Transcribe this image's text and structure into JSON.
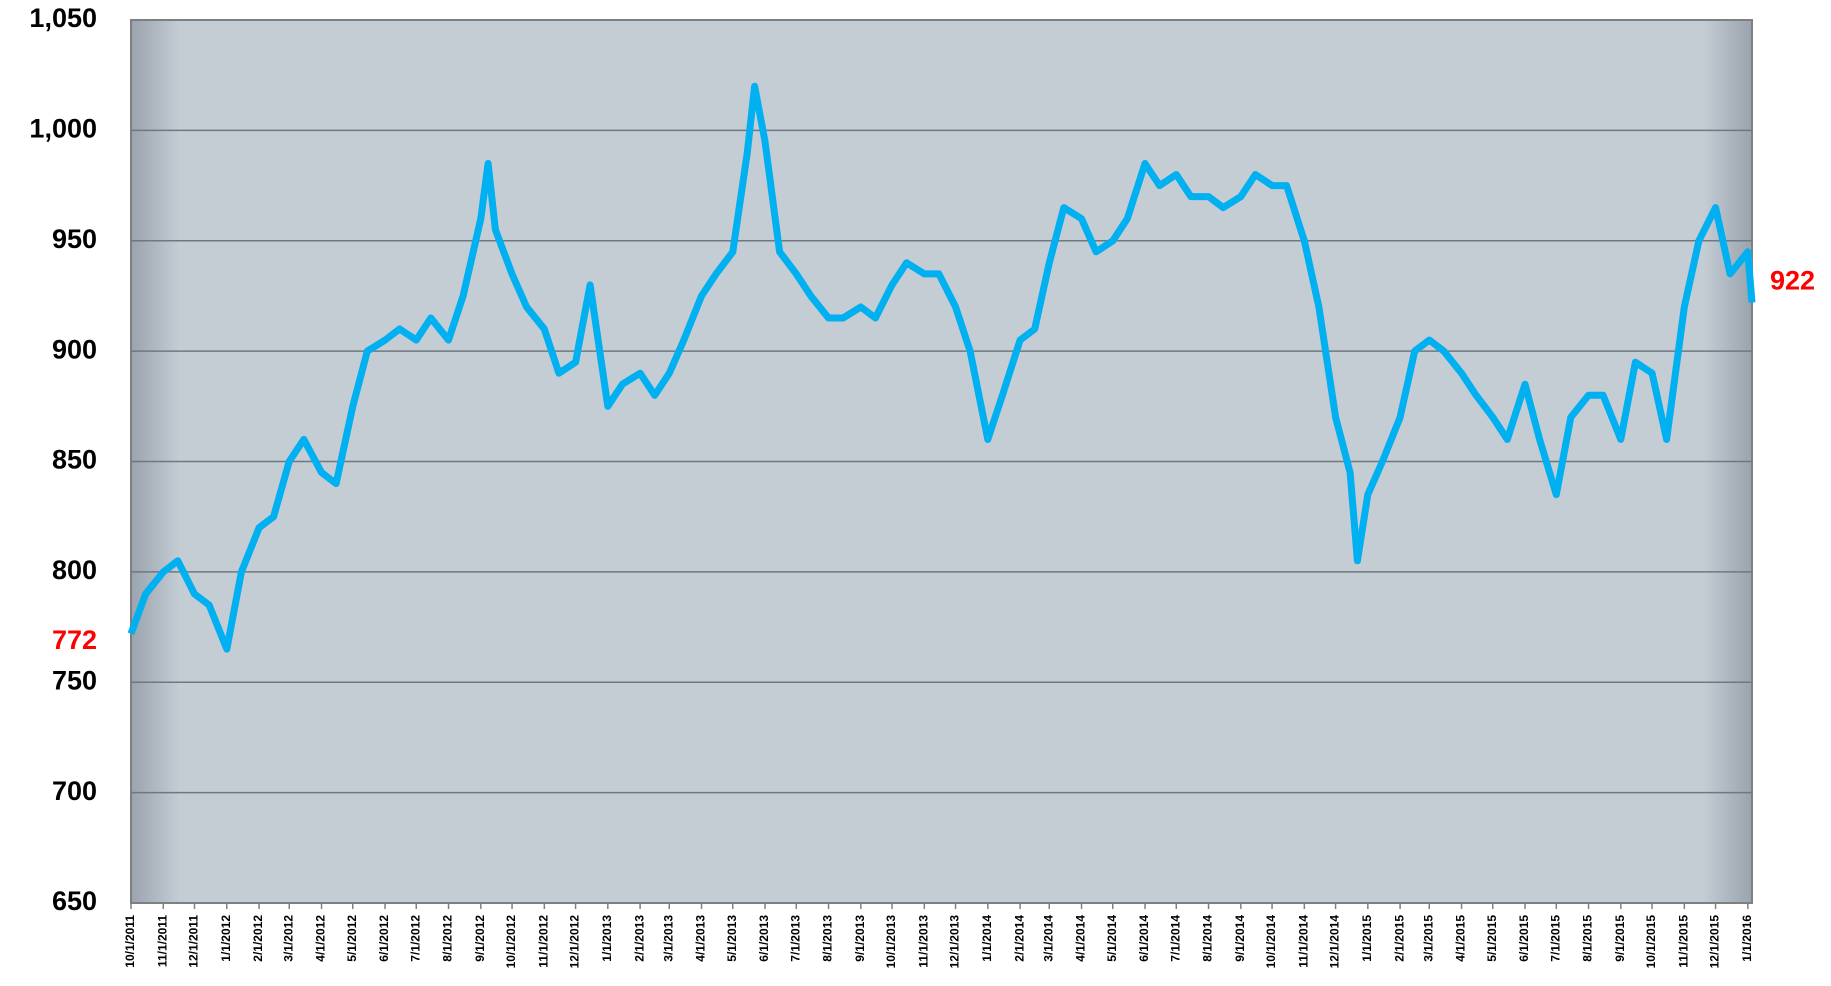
{
  "chart_data": {
    "type": "line",
    "x": [
      "10/1/2011",
      "10/15/2011",
      "11/1/2011",
      "11/15/2011",
      "12/1/2011",
      "12/15/2011",
      "1/1/2012",
      "1/15/2012",
      "2/1/2012",
      "2/15/2012",
      "3/1/2012",
      "3/15/2012",
      "4/1/2012",
      "4/15/2012",
      "5/1/2012",
      "5/15/2012",
      "6/1/2012",
      "6/15/2012",
      "7/1/2012",
      "7/15/2012",
      "8/1/2012",
      "8/15/2012",
      "9/1/2012",
      "9/8/2012",
      "9/15/2012",
      "10/1/2012",
      "10/15/2012",
      "11/1/2012",
      "11/15/2012",
      "12/1/2012",
      "12/15/2012",
      "1/1/2013",
      "1/15/2013",
      "2/1/2013",
      "2/15/2013",
      "3/1/2013",
      "3/15/2013",
      "4/1/2013",
      "4/15/2013",
      "5/1/2013",
      "5/15/2013",
      "5/22/2013",
      "6/1/2013",
      "6/15/2013",
      "7/1/2013",
      "7/15/2013",
      "8/1/2013",
      "8/15/2013",
      "9/1/2013",
      "9/15/2013",
      "10/1/2013",
      "10/15/2013",
      "11/1/2013",
      "11/15/2013",
      "12/1/2013",
      "12/15/2013",
      "1/1/2014",
      "1/15/2014",
      "2/1/2014",
      "2/15/2014",
      "3/1/2014",
      "3/15/2014",
      "4/1/2014",
      "4/15/2014",
      "5/1/2014",
      "5/15/2014",
      "6/1/2014",
      "6/15/2014",
      "7/1/2014",
      "7/15/2014",
      "8/1/2014",
      "8/15/2014",
      "9/1/2014",
      "9/15/2014",
      "10/1/2014",
      "10/15/2014",
      "11/1/2014",
      "11/15/2014",
      "12/1/2014",
      "12/15/2014",
      "12/22/2014",
      "1/1/2015",
      "1/15/2015",
      "2/1/2015",
      "2/15/2015",
      "3/1/2015",
      "3/15/2015",
      "4/1/2015",
      "4/15/2015",
      "5/1/2015",
      "5/15/2015",
      "6/1/2015",
      "6/15/2015",
      "7/1/2015",
      "7/15/2015",
      "8/1/2015",
      "8/15/2015",
      "9/1/2015",
      "9/15/2015",
      "10/1/2015",
      "10/15/2015",
      "11/1/2015",
      "11/15/2015",
      "12/1/2015",
      "12/15/2015",
      "1/1/2016",
      "1/5/2016"
    ],
    "series": [
      {
        "color": "#00b0f0",
        "values": [
          772,
          790,
          800,
          805,
          790,
          785,
          765,
          800,
          820,
          825,
          850,
          860,
          845,
          840,
          875,
          900,
          905,
          910,
          905,
          915,
          905,
          925,
          960,
          985,
          955,
          935,
          920,
          910,
          890,
          895,
          930,
          875,
          885,
          890,
          880,
          890,
          905,
          925,
          935,
          945,
          990,
          1020,
          995,
          945,
          935,
          925,
          915,
          915,
          920,
          915,
          930,
          940,
          935,
          935,
          920,
          900,
          860,
          880,
          905,
          910,
          940,
          965,
          960,
          945,
          950,
          960,
          985,
          975,
          980,
          970,
          970,
          965,
          970,
          980,
          975,
          975,
          950,
          920,
          870,
          845,
          805,
          835,
          850,
          870,
          900,
          905,
          900,
          890,
          880,
          870,
          860,
          885,
          860,
          835,
          870,
          880,
          880,
          860,
          895,
          890,
          860,
          920,
          950,
          965,
          935,
          945,
          922
        ]
      }
    ],
    "xlim": [
      "10/1/2011",
      "1/5/2016"
    ],
    "xticks": [
      "10/1/2011",
      "11/1/2011",
      "12/1/2011",
      "1/1/2012",
      "2/1/2012",
      "3/1/2012",
      "4/1/2012",
      "5/1/2012",
      "6/1/2012",
      "7/1/2012",
      "8/1/2012",
      "9/1/2012",
      "10/1/2012",
      "11/1/2012",
      "12/1/2012",
      "1/1/2013",
      "2/1/2013",
      "3/1/2013",
      "4/1/2013",
      "5/1/2013",
      "6/1/2013",
      "7/1/2013",
      "8/1/2013",
      "9/1/2013",
      "10/1/2013",
      "11/1/2013",
      "12/1/2013",
      "1/1/2014",
      "2/1/2014",
      "3/1/2014",
      "4/1/2014",
      "5/1/2014",
      "6/1/2014",
      "7/1/2014",
      "8/1/2014",
      "9/1/2014",
      "10/1/2014",
      "11/1/2014",
      "12/1/2014",
      "1/1/2015",
      "2/1/2015",
      "3/1/2015",
      "4/1/2015",
      "5/1/2015",
      "6/1/2015",
      "7/1/2015",
      "8/1/2015",
      "9/1/2015",
      "10/1/2015",
      "11/1/2015",
      "12/1/2015",
      "1/1/2016"
    ],
    "ylim": [
      650,
      1050
    ],
    "yticks": [
      650,
      700,
      750,
      800,
      850,
      900,
      950,
      {
        "value": 1000,
        "label": "1,000"
      },
      {
        "value": 1050,
        "label": "1,050"
      }
    ],
    "grid": true,
    "annotations": [
      "772",
      "922"
    ]
  }
}
